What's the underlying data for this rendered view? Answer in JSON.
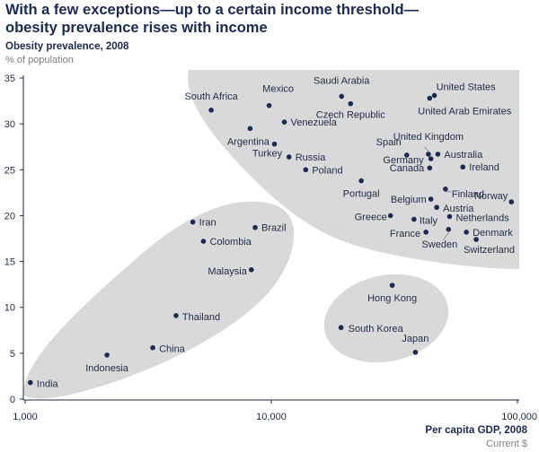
{
  "header": {
    "title_line1": "With a few exceptions—up to a certain income threshold—",
    "title_line2": "obesity prevalence rises with income"
  },
  "chart_data": {
    "type": "scatter",
    "ylabel": "Obesity prevalence, 2008",
    "yunit": "% of population",
    "xlabel": "Per capita GDP, 2008",
    "xunit": "Current $",
    "x_scale": "log",
    "xlim": [
      1000,
      100000
    ],
    "ylim": [
      0,
      35
    ],
    "x_ticks": [
      1000,
      10000,
      100000
    ],
    "x_tick_labels": [
      "1,000",
      "10,000",
      "100,000"
    ],
    "y_ticks": [
      0,
      5,
      10,
      15,
      20,
      25,
      30,
      35
    ],
    "grid": false,
    "legend": "none",
    "colors": {
      "point": "#1b2a52",
      "shade": "#d9d9d9",
      "axis": "#1f2a44",
      "leader": "#7f7f7f"
    },
    "points": [
      {
        "label": "India",
        "x": 1050,
        "y": 1.8
      },
      {
        "label": "Indonesia",
        "x": 2150,
        "y": 4.8
      },
      {
        "label": "China",
        "x": 3300,
        "y": 5.6
      },
      {
        "label": "Thailand",
        "x": 4100,
        "y": 9.1
      },
      {
        "label": "Iran",
        "x": 4800,
        "y": 19.3
      },
      {
        "label": "Colombia",
        "x": 5300,
        "y": 17.2
      },
      {
        "label": "Malaysia",
        "x": 8300,
        "y": 14.1
      },
      {
        "label": "Brazil",
        "x": 8600,
        "y": 18.7
      },
      {
        "label": "South Africa",
        "x": 5700,
        "y": 31.5
      },
      {
        "label": "Mexico",
        "x": 9800,
        "y": 32.0
      },
      {
        "label": "Argentina",
        "x": 8200,
        "y": 29.5
      },
      {
        "label": "Venezuela",
        "x": 11300,
        "y": 30.2
      },
      {
        "label": "Turkey",
        "x": 10300,
        "y": 27.8
      },
      {
        "label": "Russia",
        "x": 11800,
        "y": 26.4
      },
      {
        "label": "Poland",
        "x": 13800,
        "y": 25.0
      },
      {
        "label": "Saudi Arabia",
        "x": 19300,
        "y": 33.0
      },
      {
        "label": "Czech Republic",
        "x": 21000,
        "y": 32.2
      },
      {
        "label": "Portugal",
        "x": 23200,
        "y": 23.8
      },
      {
        "label": "Greece",
        "x": 30500,
        "y": 20.0
      },
      {
        "label": "United States",
        "x": 46000,
        "y": 33.1
      },
      {
        "label": "United Arab Emirates",
        "x": 44000,
        "y": 32.8
      },
      {
        "label": "United Kingdom",
        "x": 43500,
        "y": 26.7
      },
      {
        "label": "Spain",
        "x": 35500,
        "y": 26.6
      },
      {
        "label": "Australia",
        "x": 47500,
        "y": 26.7
      },
      {
        "label": "Canada",
        "x": 44000,
        "y": 25.2
      },
      {
        "label": "Ireland",
        "x": 60000,
        "y": 25.3
      },
      {
        "label": "Germany",
        "x": 44500,
        "y": 26.2
      },
      {
        "label": "Finland",
        "x": 51000,
        "y": 22.9
      },
      {
        "label": "Belgium",
        "x": 44500,
        "y": 21.8
      },
      {
        "label": "Austria",
        "x": 47000,
        "y": 20.9
      },
      {
        "label": "Norway",
        "x": 94500,
        "y": 21.5
      },
      {
        "label": "Italy",
        "x": 38000,
        "y": 19.6
      },
      {
        "label": "Netherlands",
        "x": 53000,
        "y": 19.9
      },
      {
        "label": "France",
        "x": 42500,
        "y": 18.2
      },
      {
        "label": "Denmark",
        "x": 62000,
        "y": 18.2
      },
      {
        "label": "Sweden",
        "x": 52500,
        "y": 18.5
      },
      {
        "label": "Switzerland",
        "x": 68000,
        "y": 17.4
      },
      {
        "label": "Hong Kong",
        "x": 31000,
        "y": 12.4
      },
      {
        "label": "South Korea",
        "x": 19200,
        "y": 7.8
      },
      {
        "label": "Japan",
        "x": 38500,
        "y": 5.1
      }
    ]
  }
}
